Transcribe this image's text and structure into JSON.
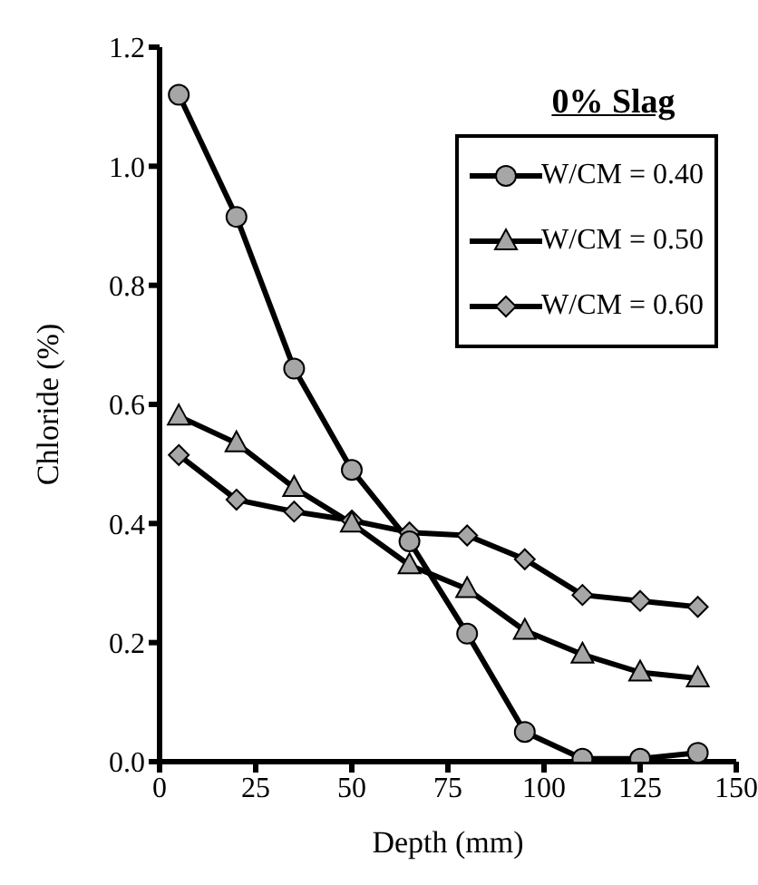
{
  "chart_data": {
    "type": "line",
    "xlabel": "Depth (mm)",
    "ylabel": "Chloride (%)",
    "legend_title": "0% Slag",
    "x": [
      5,
      20,
      35,
      50,
      65,
      80,
      95,
      110,
      125,
      140
    ],
    "series": [
      {
        "name": "W/CM = 0.40",
        "color": "#000000",
        "marker": "circle",
        "values": [
          1.12,
          0.915,
          0.66,
          0.49,
          0.37,
          0.215,
          0.05,
          0.005,
          0.005,
          0.015
        ]
      },
      {
        "name": "W/CM = 0.50",
        "color": "#000000",
        "marker": "triangle",
        "values": [
          0.58,
          0.535,
          0.46,
          0.4,
          0.33,
          0.29,
          0.22,
          0.18,
          0.15,
          0.14
        ]
      },
      {
        "name": "W/CM = 0.60",
        "color": "#000000",
        "marker": "diamond",
        "values": [
          0.515,
          0.44,
          0.42,
          0.405,
          0.385,
          0.38,
          0.34,
          0.28,
          0.27,
          0.26
        ]
      }
    ],
    "xlim": [
      0,
      150
    ],
    "xticks": [
      0,
      25,
      50,
      75,
      100,
      125,
      150
    ],
    "ylim": [
      0,
      1.2
    ],
    "yticks": [
      {
        "value": 0,
        "label": "0.0"
      },
      {
        "value": 0.2,
        "label": "0.2"
      },
      {
        "value": 0.4,
        "label": "0.4"
      },
      {
        "value": 0.6,
        "label": "0.6"
      },
      {
        "value": 0.8,
        "label": "0.8"
      },
      {
        "value": 1,
        "label": "1.0"
      },
      {
        "value": 1.2,
        "label": "1.2"
      }
    ],
    "grid": false,
    "legend": "top right",
    "line_style": "solid"
  }
}
